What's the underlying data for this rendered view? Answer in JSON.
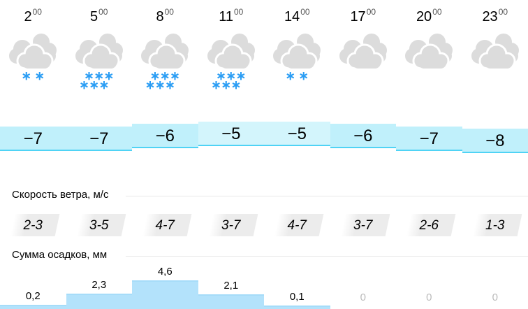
{
  "hours": [
    {
      "hour": "2",
      "min": "00",
      "temp": "−7",
      "temp_value": -7,
      "snow": "∗ ∗",
      "snow2": "",
      "wind": "2-3",
      "precip": "0,2",
      "precip_value": 0.2
    },
    {
      "hour": "5",
      "min": "00",
      "temp": "−7",
      "temp_value": -7,
      "snow": "∗∗∗",
      "snow2": "∗∗∗",
      "wind": "3-5",
      "precip": "2,3",
      "precip_value": 2.3
    },
    {
      "hour": "8",
      "min": "00",
      "temp": "−6",
      "temp_value": -6,
      "snow": "∗∗∗",
      "snow2": "∗∗∗",
      "wind": "4-7",
      "precip": "4,6",
      "precip_value": 4.6
    },
    {
      "hour": "11",
      "min": "00",
      "temp": "−5",
      "temp_value": -5,
      "snow": "∗∗∗",
      "snow2": "∗∗∗",
      "wind": "3-7",
      "precip": "2,1",
      "precip_value": 2.1
    },
    {
      "hour": "14",
      "min": "00",
      "temp": "−5",
      "temp_value": -5,
      "snow": "∗ ∗",
      "snow2": "",
      "wind": "4-7",
      "precip": "0,1",
      "precip_value": 0.1
    },
    {
      "hour": "17",
      "min": "00",
      "temp": "−6",
      "temp_value": -6,
      "snow": "",
      "snow2": "",
      "wind": "3-7",
      "precip": "0",
      "precip_value": 0
    },
    {
      "hour": "20",
      "min": "00",
      "temp": "−7",
      "temp_value": -7,
      "snow": "",
      "snow2": "",
      "wind": "2-6",
      "precip": "0",
      "precip_value": 0
    },
    {
      "hour": "23",
      "min": "00",
      "temp": "−8",
      "temp_value": -8,
      "snow": "",
      "snow2": "",
      "wind": "1-3",
      "precip": "0",
      "precip_value": 0
    }
  ],
  "labels": {
    "wind": "Скорость ветра, м/с",
    "precip": "Сумма осадков, мм"
  },
  "icons": {
    "weather": "cloud-icon",
    "precip": "snow-icon"
  },
  "colors": {
    "temp_fill": "#c0f0fb",
    "snow": "#2a9df4",
    "precip_fill": "#b3e2fb"
  }
}
